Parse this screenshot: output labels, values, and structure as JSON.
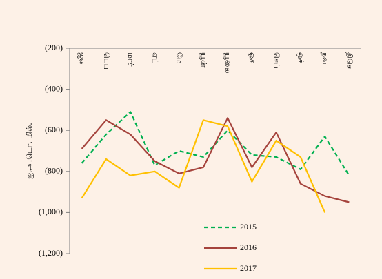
{
  "chart_data": {
    "type": "line",
    "y_label": "ஐ.அ.டொ. மில்.",
    "categories": [
      "ஜன",
      "பெப",
      "மாச்",
      "ஏப்",
      "மே",
      "யூன்",
      "யூலை",
      "ஓக",
      "செப்",
      "ஒக்",
      "நவ",
      "திசெ"
    ],
    "series": [
      {
        "name": "2015",
        "color": "#00b050",
        "dash": true,
        "values": [
          -760,
          -620,
          -510,
          -770,
          -700,
          -730,
          -600,
          -720,
          -730,
          -790,
          -630,
          -820
        ]
      },
      {
        "name": "2016",
        "color": "#a5433c",
        "dash": false,
        "values": [
          -690,
          -550,
          -620,
          -750,
          -810,
          -780,
          -540,
          -780,
          -610,
          -860,
          -920,
          -950
        ]
      },
      {
        "name": "2017",
        "color": "#ffc000",
        "dash": false,
        "values": [
          -930,
          -740,
          -820,
          -800,
          -880,
          -550,
          -580,
          -850,
          -650,
          -730,
          -1000,
          null
        ]
      }
    ],
    "ylim": [
      -1200,
      -200
    ],
    "yticks": [
      {
        "value": -200,
        "label": "(200)"
      },
      {
        "value": -400,
        "label": "(400)"
      },
      {
        "value": -600,
        "label": "(600)"
      },
      {
        "value": -800,
        "label": "(800)"
      },
      {
        "value": -1000,
        "label": "(1,000)"
      },
      {
        "value": -1200,
        "label": "(1,200)"
      }
    ]
  }
}
